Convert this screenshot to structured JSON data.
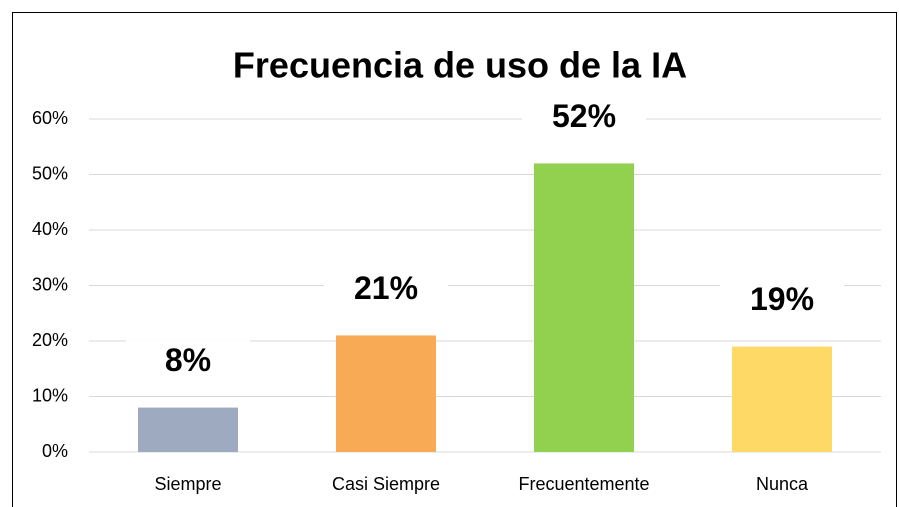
{
  "chart_data": {
    "type": "bar",
    "title": "Frecuencia de uso de la IA",
    "categories": [
      "Siempre",
      "Casi Siempre",
      "Frecuentemente",
      "Nunca"
    ],
    "values": [
      8,
      21,
      52,
      19
    ],
    "value_labels": [
      "8%",
      "21%",
      "52%",
      "19%"
    ],
    "colors": [
      "#9eaabf",
      "#f9aa55",
      "#92d050",
      "#ffd966"
    ],
    "ylim": [
      0,
      60
    ],
    "yticks": [
      {
        "value": 0,
        "label": "0%"
      },
      {
        "value": 10,
        "label": "10%"
      },
      {
        "value": 20,
        "label": "20%"
      },
      {
        "value": 30,
        "label": "30%"
      },
      {
        "value": 40,
        "label": "40%"
      },
      {
        "value": 50,
        "label": "50%"
      },
      {
        "value": 60,
        "label": "60%"
      }
    ],
    "grid": true
  }
}
